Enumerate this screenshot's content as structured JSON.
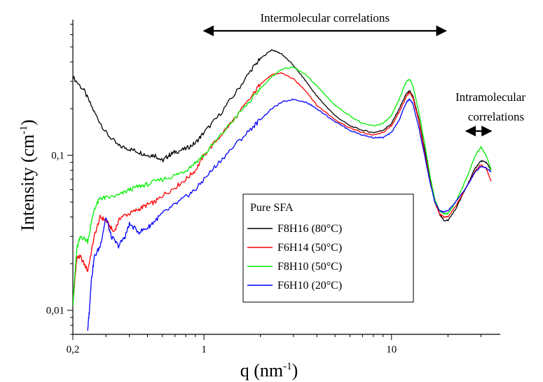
{
  "chart_data": {
    "type": "line",
    "title": "",
    "xlabel": "q (nm",
    "xlabel_sup": "-1",
    "xlabel_end": ")",
    "ylabel": "Intensity (cm",
    "ylabel_sup": "-1",
    "ylabel_end": ")",
    "xscale": "log",
    "yscale": "log",
    "xlim": [
      0.2,
      38
    ],
    "ylim": [
      0.007,
      0.75
    ],
    "xticks": [
      {
        "value": 0.2,
        "label": "0,2"
      },
      {
        "value": 1,
        "label": "1"
      },
      {
        "value": 10,
        "label": "10"
      }
    ],
    "yticks": [
      {
        "value": 0.01,
        "label": "0,01"
      },
      {
        "value": 0.1,
        "label": "0,1"
      }
    ],
    "grid": false,
    "legend": {
      "title": "Pure SFA",
      "placement": "lower-center"
    },
    "annotations": [
      {
        "text": "Intermolecular correlations",
        "from": 1.0,
        "to": 19.5,
        "y": 0.6
      },
      {
        "text_line1": "Intramolecular",
        "text_line2": "correlations",
        "from": 25,
        "to": 34,
        "y": 0.145
      }
    ],
    "series": [
      {
        "name": "F8H16 (80°C)",
        "color": "#000000",
        "x": [
          0.2,
          0.23,
          0.26,
          0.3,
          0.35,
          0.4,
          0.45,
          0.5,
          0.55,
          0.6,
          0.65,
          0.7,
          0.8,
          0.9,
          1.0,
          1.2,
          1.5,
          1.8,
          2.0,
          2.3,
          2.6,
          3.0,
          3.5,
          4.0,
          5.0,
          6.0,
          7.0,
          8.0,
          9.0,
          10.0,
          11.0,
          12.0,
          12.5,
          13.0,
          14.0,
          15.0,
          16.0,
          17.0,
          18.0,
          19.0,
          20.0,
          22.0,
          25.0,
          28.0,
          30.0,
          32.0,
          34.0
        ],
        "y": [
          0.32,
          0.26,
          0.19,
          0.14,
          0.115,
          0.11,
          0.105,
          0.1,
          0.1,
          0.092,
          0.1,
          0.105,
          0.11,
          0.12,
          0.14,
          0.18,
          0.26,
          0.36,
          0.42,
          0.48,
          0.45,
          0.38,
          0.3,
          0.24,
          0.18,
          0.155,
          0.145,
          0.14,
          0.145,
          0.16,
          0.2,
          0.25,
          0.26,
          0.24,
          0.17,
          0.11,
          0.072,
          0.052,
          0.042,
          0.038,
          0.038,
          0.045,
          0.062,
          0.083,
          0.092,
          0.09,
          0.08
        ]
      },
      {
        "name": "F6H14 (50°C)",
        "color": "#ff0000",
        "x": [
          0.2,
          0.21,
          0.22,
          0.24,
          0.26,
          0.28,
          0.3,
          0.33,
          0.36,
          0.4,
          0.45,
          0.5,
          0.55,
          0.6,
          0.7,
          0.8,
          0.9,
          1.0,
          1.2,
          1.5,
          1.8,
          2.0,
          2.3,
          2.6,
          3.0,
          3.5,
          4.0,
          5.0,
          6.0,
          7.0,
          8.0,
          9.0,
          10.0,
          11.0,
          12.0,
          12.5,
          13.0,
          14.0,
          15.0,
          16.0,
          17.0,
          18.0,
          19.0,
          20.0,
          22.0,
          25.0,
          28.0,
          30.0,
          32.0,
          34.0
        ],
        "y": [
          0.011,
          0.022,
          0.022,
          0.018,
          0.03,
          0.04,
          0.038,
          0.032,
          0.04,
          0.042,
          0.045,
          0.048,
          0.05,
          0.055,
          0.062,
          0.07,
          0.08,
          0.1,
          0.13,
          0.18,
          0.24,
          0.29,
          0.33,
          0.34,
          0.31,
          0.26,
          0.21,
          0.17,
          0.15,
          0.14,
          0.135,
          0.14,
          0.155,
          0.19,
          0.24,
          0.255,
          0.235,
          0.165,
          0.105,
          0.07,
          0.05,
          0.042,
          0.04,
          0.04,
          0.047,
          0.062,
          0.08,
          0.087,
          0.082,
          0.068
        ]
      },
      {
        "name": "F8H10 (50°C)",
        "color": "#00ee00",
        "x": [
          0.2,
          0.21,
          0.22,
          0.24,
          0.26,
          0.28,
          0.3,
          0.35,
          0.4,
          0.45,
          0.5,
          0.6,
          0.7,
          0.8,
          0.9,
          1.0,
          1.2,
          1.5,
          1.8,
          2.0,
          2.3,
          2.6,
          3.0,
          3.5,
          4.0,
          5.0,
          6.0,
          7.0,
          8.0,
          9.0,
          10.0,
          11.0,
          12.0,
          12.5,
          13.0,
          14.0,
          15.0,
          16.0,
          17.0,
          18.0,
          19.0,
          20.0,
          22.0,
          25.0,
          28.0,
          30.0,
          32.0,
          34.0
        ],
        "y": [
          0.011,
          0.025,
          0.03,
          0.028,
          0.045,
          0.053,
          0.053,
          0.055,
          0.06,
          0.063,
          0.065,
          0.07,
          0.074,
          0.08,
          0.09,
          0.1,
          0.13,
          0.18,
          0.23,
          0.27,
          0.32,
          0.36,
          0.37,
          0.33,
          0.28,
          0.21,
          0.18,
          0.16,
          0.155,
          0.16,
          0.18,
          0.23,
          0.3,
          0.31,
          0.28,
          0.19,
          0.12,
          0.075,
          0.052,
          0.044,
          0.042,
          0.042,
          0.05,
          0.07,
          0.1,
          0.113,
          0.1,
          0.08
        ]
      },
      {
        "name": "F6H10 (20°C)",
        "color": "#0000ff",
        "x": [
          0.24,
          0.245,
          0.25,
          0.26,
          0.28,
          0.3,
          0.32,
          0.35,
          0.38,
          0.4,
          0.45,
          0.5,
          0.55,
          0.6,
          0.7,
          0.8,
          0.9,
          1.0,
          1.2,
          1.5,
          1.8,
          2.0,
          2.3,
          2.6,
          3.0,
          3.5,
          4.0,
          5.0,
          6.0,
          7.0,
          8.0,
          9.0,
          10.0,
          11.0,
          12.0,
          12.5,
          13.0,
          14.0,
          15.0,
          16.0,
          17.0,
          18.0,
          19.0,
          20.0,
          22.0,
          25.0,
          28.0,
          30.0,
          32.0,
          34.0
        ],
        "y": [
          0.0075,
          0.01,
          0.015,
          0.022,
          0.026,
          0.04,
          0.03,
          0.026,
          0.03,
          0.036,
          0.032,
          0.034,
          0.038,
          0.042,
          0.048,
          0.054,
          0.06,
          0.07,
          0.09,
          0.12,
          0.15,
          0.17,
          0.2,
          0.22,
          0.23,
          0.22,
          0.2,
          0.165,
          0.145,
          0.135,
          0.13,
          0.13,
          0.14,
          0.17,
          0.22,
          0.23,
          0.215,
          0.15,
          0.1,
          0.068,
          0.05,
          0.044,
          0.043,
          0.044,
          0.05,
          0.062,
          0.078,
          0.085,
          0.083,
          0.078
        ]
      }
    ]
  }
}
